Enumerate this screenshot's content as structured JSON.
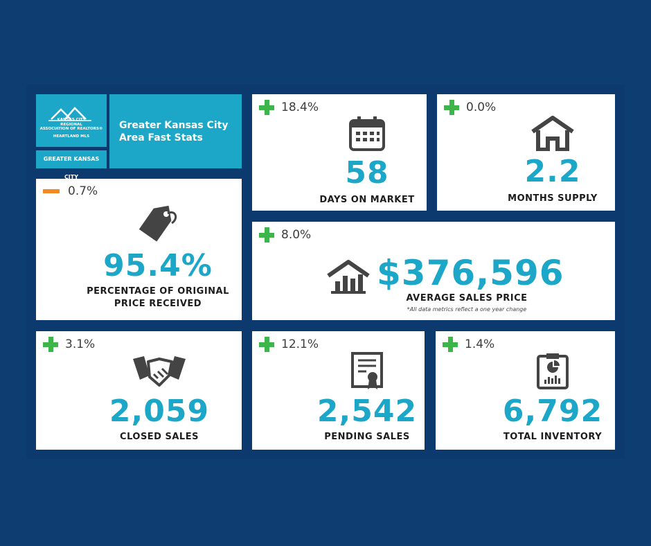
{
  "logo": {
    "org_line1": "KANSAS CITY",
    "org_line2": "REGIONAL",
    "org_line3": "ASSOCIATION OF REALTORS®",
    "org_line4": "HEARTLAND MLS",
    "region": "GREATER KANSAS CITY"
  },
  "title": "Greater Kansas City Area Fast Stats",
  "stats": [
    {
      "change": "18.4%",
      "value": "58",
      "label": "DAYS ON MARKET"
    },
    {
      "change": "0.0%",
      "value": "2.2",
      "label": "MONTHS SUPPLY"
    },
    {
      "change": "0.7%",
      "value": "95.4%",
      "label": "PERCENTAGE OF ORIGINAL PRICE RECEIVED"
    },
    {
      "change": "8.0%",
      "value": "$376,596",
      "label": "AVERAGE SALES PRICE"
    },
    {
      "change": "3.1%",
      "value": "2,059",
      "label": "CLOSED SALES"
    },
    {
      "change": "12.1%",
      "value": "2,542",
      "label": "PENDING SALES"
    },
    {
      "change": "1.4%",
      "value": "6,792",
      "label": "TOTAL INVENTORY"
    }
  ],
  "note": "*All data metrics reflect a one year change"
}
